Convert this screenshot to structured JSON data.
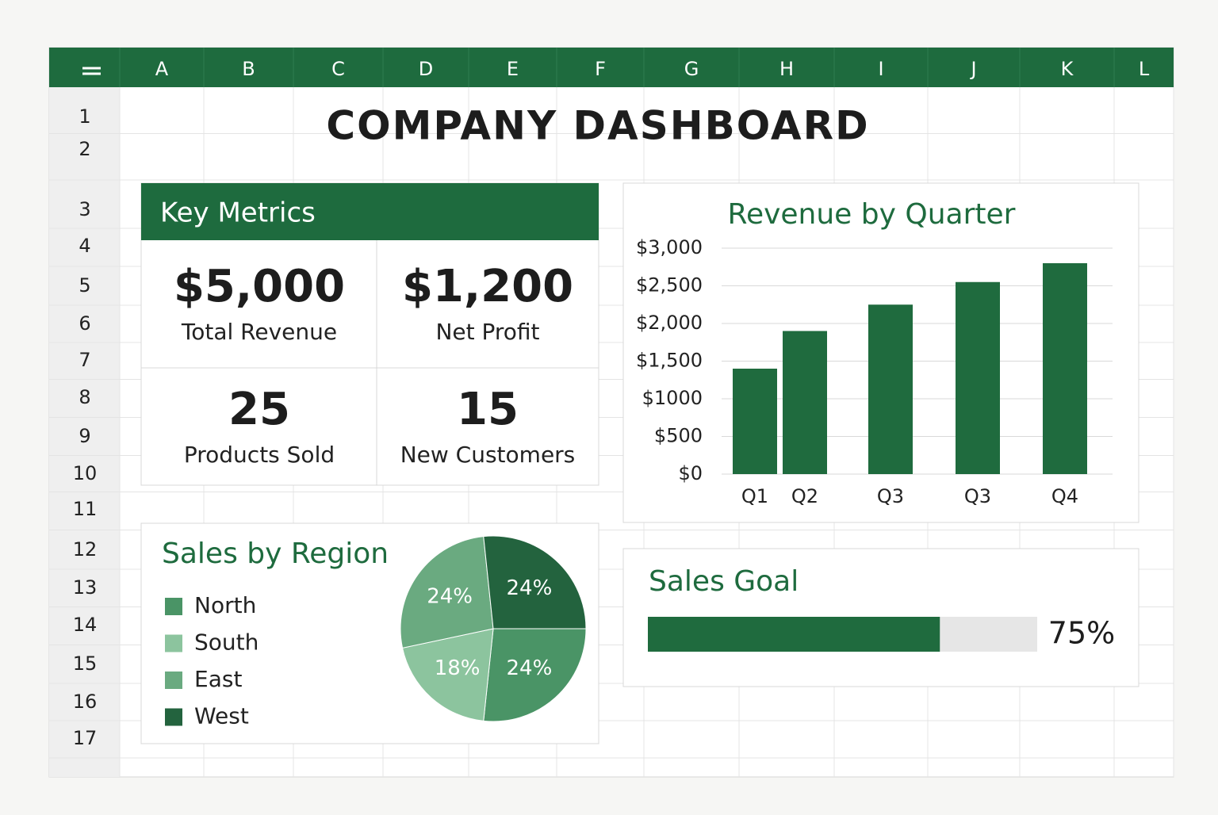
{
  "sheet": {
    "columns": [
      "A",
      "B",
      "C",
      "D",
      "E",
      "F",
      "G",
      "H",
      "I",
      "J",
      "K",
      "L"
    ],
    "rows": [
      "1",
      "2",
      "3",
      "4",
      "5",
      "6",
      "7",
      "8",
      "9",
      "10",
      "11",
      "12",
      "13",
      "14",
      "15",
      "16",
      "17"
    ]
  },
  "header": {
    "title": "COMPANY DASHBOARD"
  },
  "key_metrics": {
    "title": "Key Metrics",
    "items": [
      {
        "value": "$5,000",
        "label": "Total Revenue"
      },
      {
        "value": "$1,200",
        "label": "Net Profit"
      },
      {
        "value": "25",
        "label": "Products Sold"
      },
      {
        "value": "15",
        "label": "New Customers"
      }
    ]
  },
  "chart_data": [
    {
      "type": "bar",
      "title": "Revenue by Quarter",
      "categories": [
        "Q1",
        "Q2",
        "Q3",
        "Q3",
        "Q4"
      ],
      "values": [
        1400,
        1900,
        2250,
        2550,
        2800
      ],
      "color": "#1f6b3e",
      "ylim": [
        0,
        3000
      ],
      "yticks": [
        {
          "value": 0,
          "label": "$0"
        },
        {
          "value": 500,
          "label": "$500"
        },
        {
          "value": 1000,
          "label": "$1000"
        },
        {
          "value": 1500,
          "label": "$1,500"
        },
        {
          "value": 2000,
          "label": "$2,000"
        },
        {
          "value": 2500,
          "label": "$2,500"
        },
        {
          "value": 3000,
          "label": "$3,000"
        }
      ],
      "grid": true
    },
    {
      "type": "pie",
      "title": "Sales by Region",
      "categories": [
        "North",
        "South",
        "East",
        "West"
      ],
      "values": [
        24,
        18,
        24,
        24
      ],
      "value_labels": [
        "24%",
        "18%",
        "24%",
        "24%"
      ],
      "colors": [
        "#4a9466",
        "#8cc49e",
        "#6aaa80",
        "#23633e"
      ]
    },
    {
      "type": "progress",
      "title": "Sales Goal",
      "values": [
        75
      ],
      "value_labels": [
        "75%"
      ],
      "xlim": [
        0,
        100
      ],
      "color": "#1f6b3e",
      "track_color": "#e6e6e6"
    }
  ]
}
